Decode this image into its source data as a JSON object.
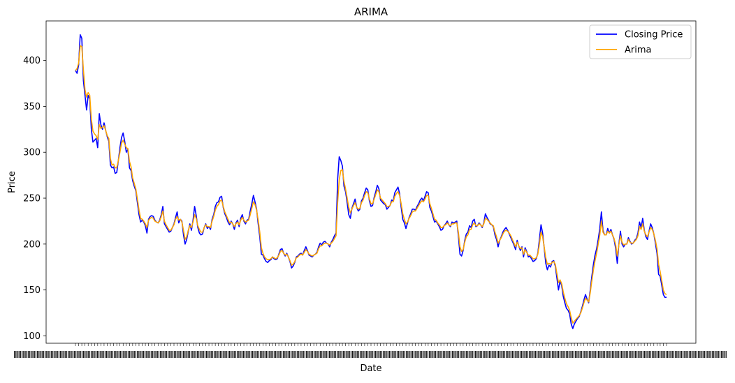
{
  "chart_data": {
    "type": "line",
    "title": "ARIMA",
    "xlabel": "Date",
    "ylabel": "Price",
    "ylim": [
      92,
      443
    ],
    "yticks": [
      100,
      150,
      200,
      250,
      300,
      350,
      400
    ],
    "x_tick_labels_legible": false,
    "x_tick_label_overlap_note": "x tick labels are overlapping and illegible",
    "legend_location": "top-right",
    "series": [
      {
        "name": "Closing Price",
        "color": "#0000ff",
        "values": [
          389,
          386,
          395,
          428,
          424,
          378,
          362,
          346,
          362,
          358,
          325,
          311,
          313,
          315,
          305,
          342,
          330,
          325,
          332,
          324,
          317,
          312,
          286,
          283,
          284,
          277,
          278,
          291,
          305,
          316,
          321,
          312,
          300,
          303,
          283,
          280,
          269,
          263,
          258,
          245,
          232,
          224,
          226,
          224,
          220,
          212,
          227,
          230,
          231,
          230,
          226,
          224,
          223,
          226,
          232,
          241,
          222,
          219,
          216,
          213,
          214,
          218,
          222,
          229,
          235,
          223,
          227,
          225,
          210,
          200,
          205,
          214,
          222,
          215,
          226,
          241,
          231,
          218,
          212,
          210,
          211,
          218,
          222,
          217,
          219,
          216,
          227,
          232,
          241,
          245,
          246,
          251,
          252,
          240,
          233,
          229,
          224,
          221,
          225,
          222,
          216,
          223,
          226,
          219,
          228,
          232,
          225,
          222,
          226,
          227,
          236,
          244,
          253,
          246,
          238,
          222,
          208,
          189,
          188,
          184,
          181,
          180,
          182,
          183,
          186,
          184,
          183,
          184,
          189,
          194,
          195,
          190,
          187,
          190,
          186,
          181,
          174,
          176,
          180,
          186,
          187,
          189,
          190,
          188,
          193,
          197,
          193,
          188,
          187,
          186,
          188,
          189,
          191,
          197,
          201,
          199,
          202,
          203,
          201,
          200,
          197,
          202,
          205,
          209,
          212,
          270,
          295,
          291,
          285,
          263,
          257,
          245,
          232,
          228,
          239,
          244,
          249,
          240,
          236,
          238,
          247,
          250,
          256,
          261,
          259,
          247,
          241,
          242,
          251,
          257,
          264,
          260,
          248,
          246,
          244,
          243,
          238,
          240,
          242,
          248,
          247,
          256,
          259,
          262,
          255,
          240,
          227,
          223,
          217,
          223,
          229,
          233,
          238,
          238,
          237,
          241,
          244,
          248,
          250,
          247,
          252,
          257,
          256,
          240,
          236,
          230,
          224,
          225,
          222,
          219,
          215,
          216,
          220,
          222,
          225,
          221,
          219,
          224,
          223,
          224,
          225,
          209,
          189,
          187,
          193,
          204,
          211,
          213,
          220,
          218,
          225,
          227,
          219,
          220,
          223,
          221,
          218,
          223,
          233,
          229,
          226,
          222,
          221,
          219,
          210,
          205,
          197,
          204,
          208,
          213,
          216,
          218,
          215,
          211,
          207,
          203,
          199,
          194,
          204,
          198,
          193,
          197,
          186,
          196,
          192,
          186,
          187,
          184,
          181,
          182,
          184,
          190,
          205,
          221,
          212,
          196,
          179,
          172,
          177,
          175,
          181,
          182,
          176,
          163,
          150,
          160,
          155,
          143,
          136,
          130,
          128,
          124,
          113,
          108,
          113,
          116,
          119,
          121,
          126,
          132,
          139,
          145,
          140,
          136,
          150,
          165,
          178,
          188,
          195,
          205,
          217,
          235,
          215,
          210,
          210,
          217,
          212,
          216,
          210,
          205,
          195,
          179,
          200,
          214,
          200,
          197,
          200,
          200,
          207,
          203,
          200,
          201,
          204,
          206,
          212,
          224,
          218,
          228,
          215,
          208,
          205,
          214,
          222,
          218,
          211,
          201,
          190,
          167,
          165,
          155,
          145,
          142,
          142
        ]
      },
      {
        "name": "Arima",
        "color": "#ffa500",
        "values": [
          389,
          391,
          397,
          416,
          415,
          390,
          368,
          360,
          365,
          362,
          336,
          323,
          320,
          318,
          314,
          330,
          326,
          327,
          329,
          324,
          318,
          315,
          293,
          286,
          287,
          283,
          283,
          291,
          300,
          310,
          313,
          309,
          305,
          304,
          290,
          284,
          272,
          266,
          260,
          249,
          237,
          228,
          227,
          225,
          222,
          218,
          226,
          228,
          229,
          228,
          225,
          224,
          223,
          225,
          230,
          236,
          225,
          221,
          218,
          215,
          215,
          218,
          221,
          227,
          230,
          226,
          227,
          224,
          215,
          205,
          208,
          215,
          220,
          218,
          224,
          232,
          228,
          220,
          216,
          213,
          213,
          218,
          221,
          219,
          219,
          218,
          225,
          230,
          237,
          241,
          243,
          247,
          248,
          241,
          235,
          231,
          227,
          223,
          224,
          222,
          219,
          222,
          224,
          221,
          226,
          229,
          226,
          224,
          225,
          226,
          232,
          239,
          246,
          243,
          237,
          226,
          213,
          196,
          190,
          186,
          184,
          183,
          183,
          184,
          186,
          185,
          184,
          185,
          188,
          192,
          193,
          190,
          188,
          189,
          186,
          182,
          177,
          178,
          181,
          185,
          186,
          188,
          189,
          188,
          191,
          194,
          192,
          189,
          188,
          187,
          188,
          189,
          190,
          195,
          198,
          198,
          200,
          201,
          201,
          200,
          199,
          201,
          203,
          206,
          209,
          245,
          270,
          280,
          281,
          268,
          260,
          250,
          240,
          234,
          238,
          242,
          245,
          240,
          238,
          239,
          245,
          248,
          253,
          257,
          256,
          249,
          244,
          244,
          249,
          254,
          259,
          257,
          250,
          248,
          246,
          244,
          241,
          241,
          242,
          246,
          246,
          252,
          255,
          257,
          253,
          244,
          233,
          227,
          222,
          224,
          228,
          231,
          235,
          236,
          236,
          239,
          242,
          245,
          247,
          246,
          249,
          253,
          253,
          244,
          239,
          233,
          227,
          226,
          223,
          221,
          218,
          218,
          220,
          221,
          223,
          221,
          220,
          222,
          222,
          223,
          223,
          213,
          197,
          192,
          194,
          202,
          208,
          210,
          216,
          216,
          221,
          223,
          220,
          220,
          222,
          221,
          219,
          222,
          228,
          227,
          225,
          223,
          221,
          220,
          213,
          208,
          201,
          204,
          207,
          211,
          214,
          215,
          214,
          212,
          209,
          205,
          201,
          197,
          202,
          198,
          195,
          196,
          189,
          194,
          191,
          188,
          188,
          186,
          184,
          184,
          185,
          189,
          200,
          213,
          208,
          197,
          185,
          178,
          179,
          178,
          180,
          181,
          178,
          168,
          158,
          161,
          157,
          148,
          141,
          135,
          132,
          128,
          120,
          114,
          116,
          118,
          120,
          122,
          125,
          130,
          136,
          141,
          139,
          137,
          147,
          160,
          172,
          182,
          190,
          200,
          210,
          225,
          213,
          210,
          210,
          214,
          212,
          214,
          210,
          206,
          199,
          187,
          199,
          209,
          202,
          199,
          200,
          200,
          205,
          202,
          201,
          201,
          203,
          205,
          209,
          219,
          216,
          222,
          214,
          210,
          208,
          213,
          218,
          216,
          211,
          204,
          195,
          178,
          170,
          160,
          150,
          146,
          145
        ]
      }
    ]
  }
}
